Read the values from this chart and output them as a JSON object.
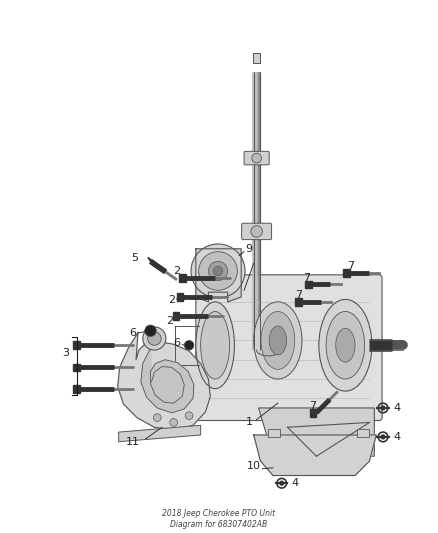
{
  "title": "2018 Jeep Cherokee PTO Unit\nDiagram for 68307402AB",
  "bg_color": "#ffffff",
  "line_color": "#444444",
  "dark_color": "#1a1a1a",
  "figsize": [
    4.38,
    5.33
  ],
  "dpi": 100,
  "label_fontsize": 7.5,
  "label_color": "#222222",
  "part_line_color": "#555555",
  "part_fill_light": "#e8e8e8",
  "part_fill_mid": "#d0d0d0",
  "part_fill_dark": "#aaaaaa",
  "bolt_color": "#333333",
  "callout_line_color": "#333333"
}
